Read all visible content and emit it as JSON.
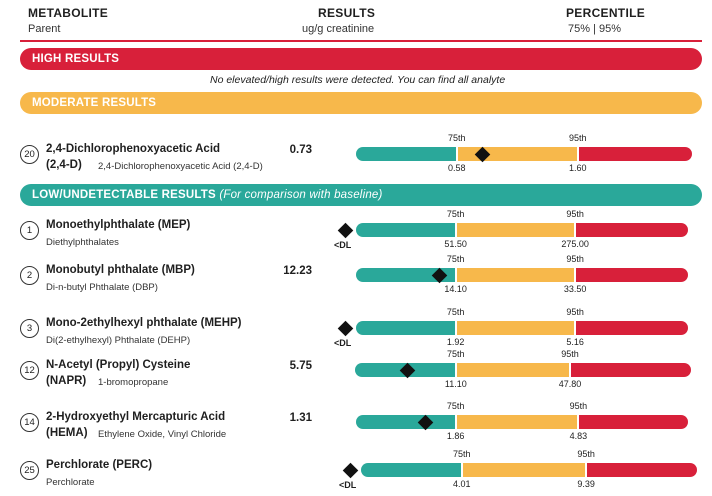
{
  "header": {
    "col1_title": "METABOLITE",
    "col1_sub": "Parent",
    "col2_title": "RESULTS",
    "col2_sub": "ug/g creatinine",
    "col3_title": "PERCENTILE",
    "col3_sub": "75% | 95%"
  },
  "colors": {
    "green": "#2aa89a",
    "yellow": "#f7b84b",
    "red": "#d8203a"
  },
  "high": {
    "label": "HIGH RESULTS",
    "note": "No elevated/high results were detected. You can find all analyte"
  },
  "moderate": {
    "label": "MODERATE RESULTS"
  },
  "low": {
    "label": "LOW/UNDETECTABLE RESULTS",
    "label_note": "(For comparison with baseline)"
  },
  "p75": "75th",
  "p95": "95th",
  "dl_label": "<DL",
  "moderate_items": [
    {
      "num": "20",
      "name": "2,4-Dichlorophenoxyacetic Acid",
      "abbr": "(2,4-D)",
      "parent": "2,4-Dichlorophenoxyacetic Acid (2,4-D)",
      "result": "0.73",
      "p75_value": "0.58",
      "p95_value": "1.60",
      "marker_fraction": 0.21
    }
  ],
  "low_items": [
    {
      "num": "1",
      "name": "Monoethylphthalate (MEP)",
      "abbr": "",
      "parent": "Diethylphthalates",
      "result": "",
      "p75_value": "51.50",
      "p95_value": "275.00",
      "below_dl": true
    },
    {
      "num": "2",
      "name": "Monobutyl phthalate (MBP)",
      "abbr": "",
      "parent": "Di-n-butyl Phthalate (DBP)",
      "result": "12.23",
      "p75_value": "14.10",
      "p95_value": "33.50",
      "below_dl": false,
      "marker_fraction": 0.84
    },
    {
      "num": "3",
      "name": "Mono-2ethylhexyl phthalate (MEHP)",
      "abbr": "",
      "parent": "Di(2-ethylhexyl) Phthalate (DEHP)",
      "result": "",
      "p75_value": "1.92",
      "p95_value": "5.16",
      "below_dl": true
    },
    {
      "num": "12",
      "name": "N-Acetyl (Propyl) Cysteine",
      "abbr": "(NAPR)",
      "parent": "1-bromopropane",
      "result": "5.75",
      "p75_value": "11.10",
      "p95_value": "47.80",
      "below_dl": false,
      "marker_fraction": 0.52
    },
    {
      "num": "14",
      "name": "2-Hydroxyethyl Mercapturic Acid",
      "abbr": "(HEMA)",
      "parent": "Ethylene Oxide, Vinyl Chloride",
      "result": "1.31",
      "p75_value": "1.86",
      "p95_value": "4.83",
      "below_dl": false,
      "marker_fraction": 0.7
    },
    {
      "num": "25",
      "name": "Perchlorate (PERC)",
      "abbr": "",
      "parent": "Perchlorate",
      "result": "",
      "p75_value": "4.01",
      "p95_value": "9.39",
      "below_dl": true
    }
  ]
}
